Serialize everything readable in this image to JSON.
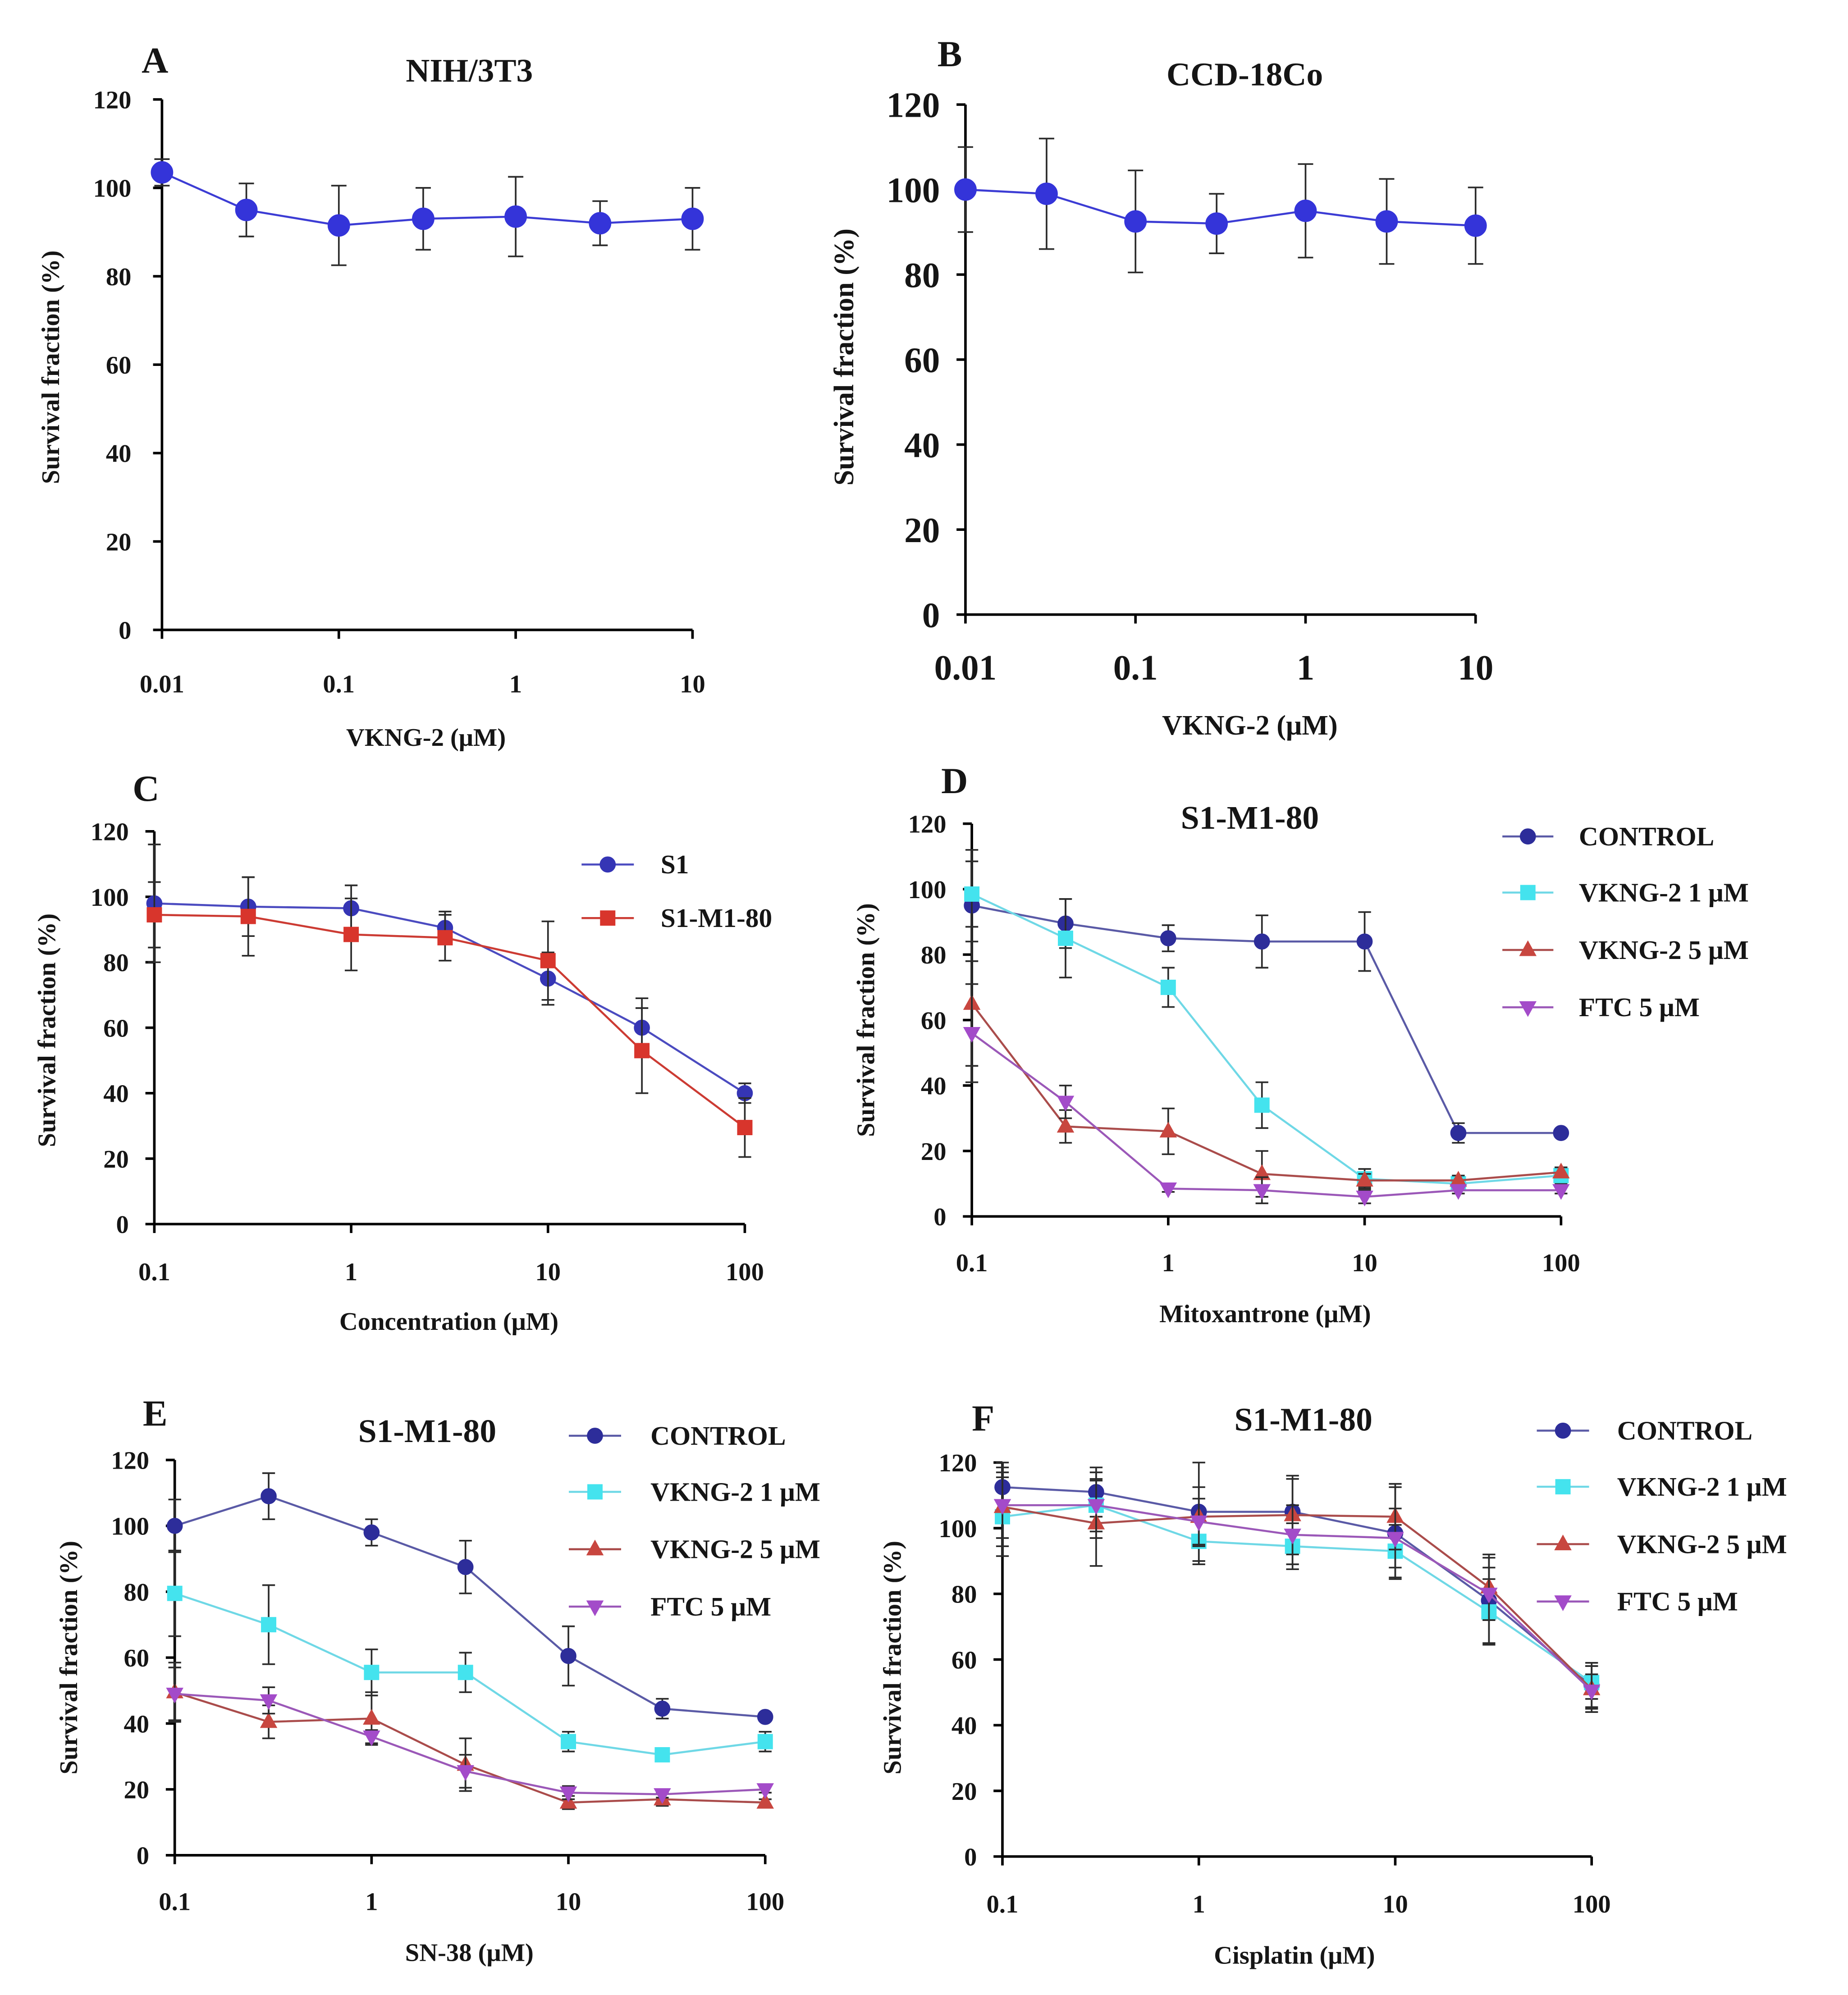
{
  "chart_data": [
    {
      "type": "line",
      "panel": "A",
      "title": "NIH/3T3",
      "xlabel": "VKNG-2 (μM)",
      "ylabel": "Survival fraction (%)",
      "xlim": [
        0.01,
        10
      ],
      "ylim": [
        0,
        120
      ],
      "xticks": [
        0.01,
        0.1,
        1,
        10
      ],
      "yticks": [
        0,
        20,
        40,
        60,
        80,
        100,
        120
      ],
      "x": [
        0.01,
        0.03,
        0.1,
        0.3,
        1,
        3,
        10
      ],
      "series": [
        {
          "marker": "circle",
          "color": "#3434d9",
          "line_color": "#3c3cd4",
          "values": [
            103.5,
            95,
            91.5,
            93,
            93.5,
            92,
            93
          ],
          "errors": [
            3,
            6,
            9,
            7,
            9,
            5,
            7
          ]
        }
      ]
    },
    {
      "type": "line",
      "panel": "B",
      "title": "CCD-18Co",
      "xlabel": "VKNG-2 (μM)",
      "ylabel": "Survival fraction (%)",
      "xlim": [
        0.01,
        10
      ],
      "ylim": [
        0,
        120
      ],
      "xticks": [
        0.01,
        0.1,
        1,
        10
      ],
      "yticks": [
        0,
        20,
        40,
        60,
        80,
        100,
        120
      ],
      "x": [
        0.01,
        0.03,
        0.1,
        0.3,
        1,
        3,
        10
      ],
      "series": [
        {
          "marker": "circle",
          "color": "#3434d9",
          "line_color": "#3c3cd4",
          "values": [
            100,
            99,
            92.5,
            92,
            95,
            92.5,
            91.5
          ],
          "errors": [
            10,
            13,
            12,
            7,
            11,
            10,
            9
          ]
        }
      ]
    },
    {
      "type": "line",
      "panel": "C",
      "xlabel": "Concentration (μM)",
      "ylabel": "Survival fraction (%)",
      "xlim": [
        0.1,
        100
      ],
      "ylim": [
        0,
        120
      ],
      "xticks": [
        0.1,
        1,
        10,
        100
      ],
      "yticks": [
        0,
        20,
        40,
        60,
        80,
        100,
        120
      ],
      "x": [
        0.1,
        0.3,
        1,
        3,
        10,
        30,
        100
      ],
      "series": [
        {
          "name": "S1",
          "marker": "circle",
          "color": "#3535b5",
          "line_color": "#4b4bc0",
          "values": [
            98,
            97,
            96.5,
            90.5,
            75,
            60,
            40
          ],
          "errors": [
            18,
            9,
            7,
            5,
            8,
            9,
            3
          ]
        },
        {
          "name": "S1-M1-80",
          "marker": "square",
          "color": "#d8352c",
          "line_color": "#cc3b33",
          "values": [
            94.5,
            94,
            88.5,
            87.5,
            80.5,
            53,
            29.5
          ],
          "errors": [
            10,
            12,
            11,
            7,
            12,
            13,
            9
          ]
        }
      ]
    },
    {
      "type": "line",
      "panel": "D",
      "title": "S1-M1-80",
      "xlabel": "Mitoxantrone (μM)",
      "ylabel": "Survival fraction (%)",
      "xlim": [
        0.1,
        100
      ],
      "ylim": [
        0,
        120
      ],
      "xticks": [
        0.1,
        1,
        10,
        100
      ],
      "yticks": [
        0,
        20,
        40,
        60,
        80,
        100,
        120
      ],
      "x": [
        0.1,
        0.3,
        1,
        3,
        10,
        30,
        100
      ],
      "series": [
        {
          "name": "CONTROL",
          "marker": "circle",
          "color": "#2d2d9a",
          "line_color": "#5a5aa6",
          "values": [
            95,
            89.5,
            85,
            84,
            84,
            25.5,
            25.5
          ],
          "errors": [
            17,
            7.5,
            4,
            8,
            9,
            3,
            0.5
          ]
        },
        {
          "name": "VKNG-2 1 μM",
          "marker": "square",
          "color": "#44e3ee",
          "line_color": "#6fd8e6",
          "values": [
            98.5,
            85,
            70,
            34,
            11.5,
            10,
            12.5
          ],
          "errors": [
            10,
            12,
            6,
            7,
            3,
            2,
            2.5
          ]
        },
        {
          "name": "VKNG-2 5 μM",
          "marker": "triangle-up",
          "color": "#c8463f",
          "line_color": "#aa4c4b",
          "values": [
            65,
            27.5,
            26,
            13,
            11,
            11,
            13.5
          ],
          "errors": [
            19,
            5,
            7,
            7,
            2,
            1.5,
            1.5
          ]
        },
        {
          "name": "FTC 5 μM",
          "marker": "triangle-down",
          "color": "#a34bc9",
          "line_color": "#9b58b8",
          "values": [
            56,
            35,
            8.5,
            8,
            6,
            8,
            8
          ],
          "errors": [
            15,
            5,
            1,
            4,
            2,
            1,
            1
          ]
        }
      ]
    },
    {
      "type": "line",
      "panel": "E",
      "title": "S1-M1-80",
      "xlabel": "SN-38 (μM)",
      "ylabel": "Survival fraction (%)",
      "xlim": [
        0.1,
        100
      ],
      "ylim": [
        0,
        120
      ],
      "xticks": [
        0.1,
        1,
        10,
        100
      ],
      "yticks": [
        0,
        20,
        40,
        60,
        80,
        100,
        120
      ],
      "x": [
        0.1,
        0.3,
        1,
        3,
        10,
        30,
        100
      ],
      "series": [
        {
          "name": "CONTROL",
          "marker": "circle",
          "color": "#2d2d9a",
          "line_color": "#5a5aa6",
          "values": [
            100,
            109,
            98,
            87.5,
            60.5,
            44.5,
            42
          ],
          "errors": [
            8,
            7,
            4,
            8,
            9,
            3,
            1
          ]
        },
        {
          "name": "VKNG-2 1 μM",
          "marker": "square",
          "color": "#44e3ee",
          "line_color": "#6fd8e6",
          "values": [
            79.5,
            70,
            55.5,
            55.5,
            34.5,
            30.5,
            34.5
          ],
          "errors": [
            13,
            12,
            7,
            6,
            3,
            1,
            3
          ]
        },
        {
          "name": "VKNG-2 5 μM",
          "marker": "triangle-up",
          "color": "#c8463f",
          "line_color": "#aa4c4b",
          "values": [
            49.5,
            40.5,
            41.5,
            27.5,
            16,
            17,
            16
          ],
          "errors": [
            9,
            5,
            8,
            8,
            2,
            2,
            1
          ]
        },
        {
          "name": "FTC 5 μM",
          "marker": "triangle-down",
          "color": "#a34bc9",
          "line_color": "#9b58b8",
          "values": [
            49,
            47,
            36,
            25.5,
            19,
            18.5,
            20
          ],
          "errors": [
            8,
            4,
            2,
            5,
            2,
            1,
            1
          ]
        }
      ]
    },
    {
      "type": "line",
      "panel": "F",
      "title": "S1-M1-80",
      "xlabel": "Cisplatin (μM)",
      "ylabel": "Survival fraction (%)",
      "xlim": [
        0.1,
        100
      ],
      "ylim": [
        0,
        120
      ],
      "xticks": [
        0.1,
        1,
        10,
        100
      ],
      "yticks": [
        0,
        20,
        40,
        60,
        80,
        100,
        120
      ],
      "x": [
        0.1,
        0.3,
        1,
        3,
        10,
        30,
        100
      ],
      "series": [
        {
          "name": "CONTROL",
          "marker": "circle",
          "color": "#2d2d9a",
          "line_color": "#5a5aa6",
          "values": [
            112.5,
            111,
            105,
            105,
            98.5,
            78,
            52
          ],
          "errors": [
            7.5,
            7.5,
            15,
            10,
            14,
            13,
            7
          ]
        },
        {
          "name": "VKNG-2 1 μM",
          "marker": "square",
          "color": "#44e3ee",
          "line_color": "#6fd8e6",
          "values": [
            103.5,
            107,
            96,
            94.5,
            93,
            74.5,
            53
          ],
          "errors": [
            12,
            10,
            7,
            7,
            8,
            10,
            5
          ]
        },
        {
          "name": "VKNG-2 5 μM",
          "marker": "triangle-up",
          "color": "#c8463f",
          "line_color": "#aa4c4b",
          "values": [
            106.5,
            101.5,
            103.5,
            104,
            103.5,
            82,
            51
          ],
          "errors": [
            12,
            13,
            9,
            12,
            10,
            10,
            7
          ]
        },
        {
          "name": "FTC 5 μM",
          "marker": "triangle-down",
          "color": "#a34bc9",
          "line_color": "#9b58b8",
          "values": [
            107,
            107,
            102,
            98,
            97,
            80,
            50.5
          ],
          "errors": [
            10,
            8,
            7,
            9,
            9,
            8,
            5
          ]
        }
      ]
    }
  ]
}
